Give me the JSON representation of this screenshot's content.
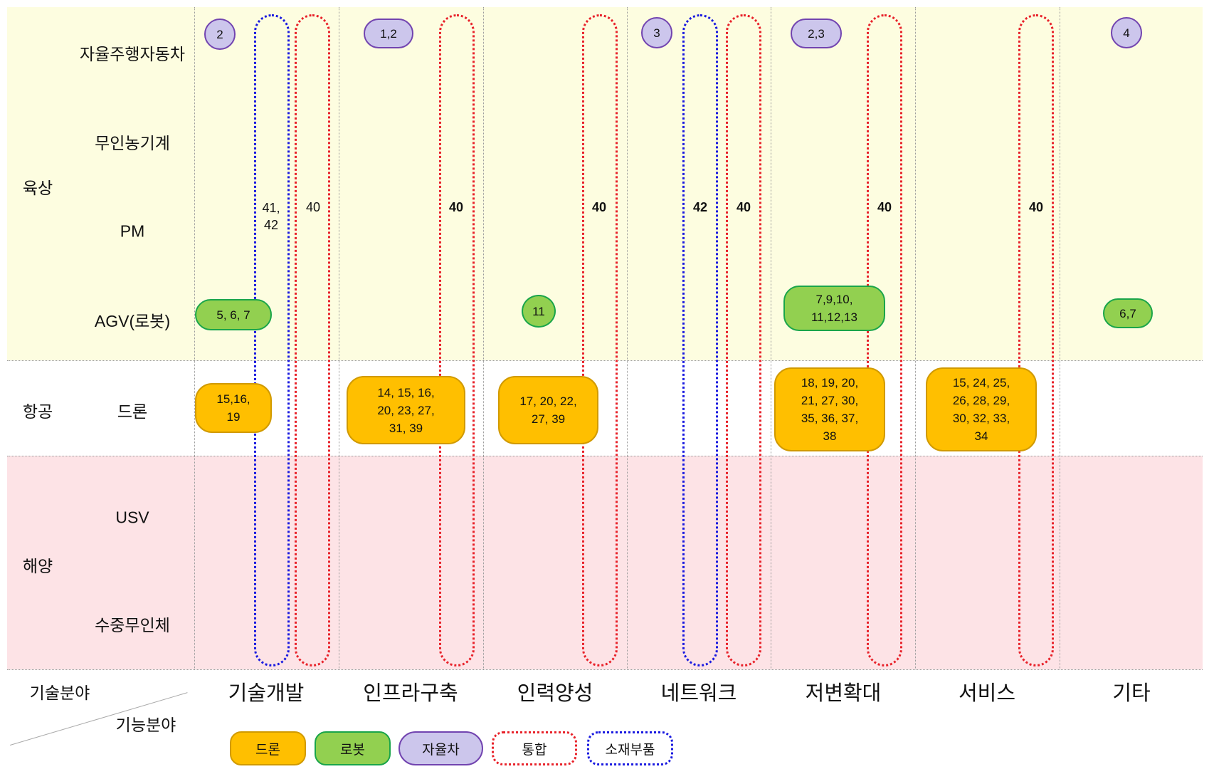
{
  "domains": {
    "land": "육상",
    "air": "항공",
    "sea": "해양"
  },
  "rows": {
    "car": "자율주행자동차",
    "farm": "무인농기계",
    "pm": "PM",
    "agv": "AGV(로봇)",
    "drone": "드론",
    "usv": "USV",
    "underwater": "수중무인체"
  },
  "axis": {
    "tech_field": "기술분야",
    "function_field": "기능분야"
  },
  "columns": [
    "기술개발",
    "인프라구축",
    "인력양성",
    "네트워크",
    "저변확대",
    "서비스",
    "기타"
  ],
  "capsule_labels": {
    "tech_blue": "41,\n42",
    "tech_red": "40",
    "infra_red": "40",
    "workforce_red": "40",
    "network_blue": "42",
    "network_red": "40",
    "expand_red": "40",
    "service_red": "40"
  },
  "pills": {
    "car_tech": "2",
    "car_infra": "1,2",
    "car_network": "3",
    "car_expand": "2,3",
    "car_other": "4",
    "robot_tech": "5, 6, 7",
    "robot_workforce": "11",
    "robot_expand": "7,9,10,\n11,12,13",
    "robot_other": "6,7",
    "drone_tech": "15,16,\n19",
    "drone_infra": "14, 15, 16,\n20, 23, 27,\n31, 39",
    "drone_workforce": "17, 20, 22,\n27, 39",
    "drone_expand": "18, 19, 20,\n21, 27, 30,\n35, 36, 37,\n38",
    "drone_service": "15, 24, 25,\n26, 28, 29,\n30, 32, 33,\n34"
  },
  "legend": {
    "drone": "드론",
    "robot": "로봇",
    "car": "자율차",
    "integrated": "통합",
    "materials": "소재부품"
  },
  "colors": {
    "land_band": "#fdfde0",
    "sea_band": "#fde3e6",
    "drone": "#ffbf00",
    "robot": "#92d050",
    "car": "#ccc6ec",
    "integrated": "#e8222a",
    "materials": "#1a1ae0"
  }
}
